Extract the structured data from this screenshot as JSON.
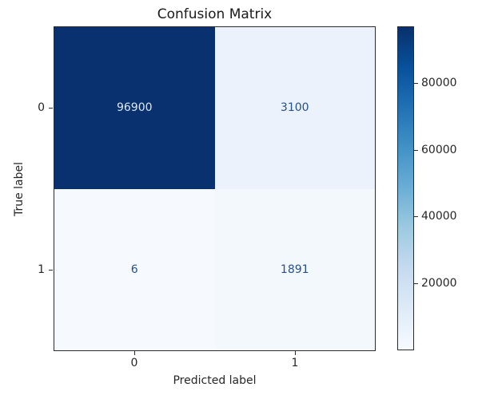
{
  "chart_data": {
    "type": "heatmap",
    "title": "Confusion Matrix",
    "xlabel": "Predicted label",
    "ylabel": "True label",
    "x_tick_labels": [
      "0",
      "1"
    ],
    "y_tick_labels": [
      "0",
      "1"
    ],
    "matrix": [
      [
        96900,
        3100
      ],
      [
        6,
        1891
      ]
    ],
    "colormap": "Blues",
    "vmin": 6,
    "vmax": 96900,
    "grid": false,
    "legend_position": "right-colorbar",
    "colorbar": {
      "tick_values": [
        20000,
        40000,
        60000,
        80000
      ],
      "tick_labels": [
        "20000",
        "40000",
        "60000",
        "80000"
      ],
      "gradient_stops_top_to_bottom": [
        "#08306b",
        "#08519c",
        "#2171b5",
        "#4292c6",
        "#6baed6",
        "#9ecae1",
        "#c6dbef",
        "#deebf7",
        "#f7fbff"
      ]
    },
    "cell_colors": [
      [
        "#0a316f",
        "#ebf2fb"
      ],
      [
        "#f6fafe",
        "#f3f8fd"
      ]
    ],
    "cell_text_colors": [
      [
        "#dce8f5",
        "#24508f"
      ],
      [
        "#24508f",
        "#24508f"
      ]
    ],
    "axis_color": "#262626"
  }
}
